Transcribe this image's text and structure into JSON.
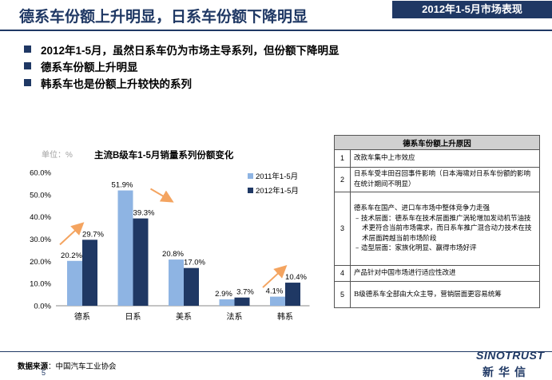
{
  "header": {
    "title": "德系车份额上升明显，日系车份额下降明显",
    "badge": "2012年1-5月市场表现"
  },
  "bullets": [
    "2012年1-5月，虽然日系车仍为市场主导系列，但份额下降明显",
    "德系车份额上升明显",
    "韩系车也是份额上升较快的系列"
  ],
  "chart_data": {
    "type": "bar",
    "title": "主流B级车1-5月销量系列份额变化",
    "unit_label": "单位：%",
    "categories": [
      "德系",
      "日系",
      "美系",
      "法系",
      "韩系"
    ],
    "series": [
      {
        "name": "2011年1-5月",
        "values": [
          20.2,
          51.9,
          20.8,
          2.9,
          4.1
        ],
        "labels": [
          "20.2%",
          "51.9%",
          "20.8%",
          "2.9%",
          "4.1%"
        ],
        "color": "#8eb4e3"
      },
      {
        "name": "2012年1-5月",
        "values": [
          29.7,
          39.3,
          17.0,
          3.7,
          10.4
        ],
        "labels": [
          "29.7%",
          "39.3%",
          "17.0%",
          "3.7%",
          "10.4%"
        ],
        "color": "#1f3864"
      }
    ],
    "ylim": [
      0,
      60
    ],
    "yticks": [
      "0.0%",
      "10.0%",
      "20.0%",
      "30.0%",
      "40.0%",
      "50.0%",
      "60.0%"
    ],
    "ytick_values": [
      0,
      10,
      20,
      30,
      40,
      50,
      60
    ],
    "legend_position": "top-right",
    "grid": false,
    "trend_arrows": [
      {
        "category": "德系",
        "direction": "up"
      },
      {
        "category": "日系",
        "direction": "down"
      },
      {
        "category": "韩系",
        "direction": "up"
      }
    ],
    "arrow_color": "#f4a460"
  },
  "reasons_table": {
    "header": "德系车份额上升原因",
    "rows": [
      {
        "num": "1",
        "lines": [
          "改款车集中上市效应"
        ]
      },
      {
        "num": "2",
        "lines": [
          "日系车受丰田召回事件影响（日本海啸对日系车份额的影响在统计期间不明显）"
        ]
      },
      {
        "num": "3",
        "lines": [
          "德系车在国产、进口车市场中整体竞争力走强"
        ],
        "subs": [
          "– 技术层面：德系车在技术层面推广涡轮增加发动机节油技术更符合当前市场需求，而日系车推广混合动力技术在技术层面跨越当前市场阶段",
          "– 造型层面：家族化明显、赢得市场好评"
        ]
      },
      {
        "num": "4",
        "lines": [
          "产品针对中国市场进行适应性改进"
        ]
      },
      {
        "num": "5",
        "lines": [
          "B级德系车全部由大众主导，营销层面更容易统筹"
        ]
      }
    ]
  },
  "footer": {
    "source_label": "数据来源",
    "source_text": "：中国汽车工业协会",
    "page": "5",
    "logo_en": "SINOTRUST",
    "logo_cn": "新华信"
  }
}
